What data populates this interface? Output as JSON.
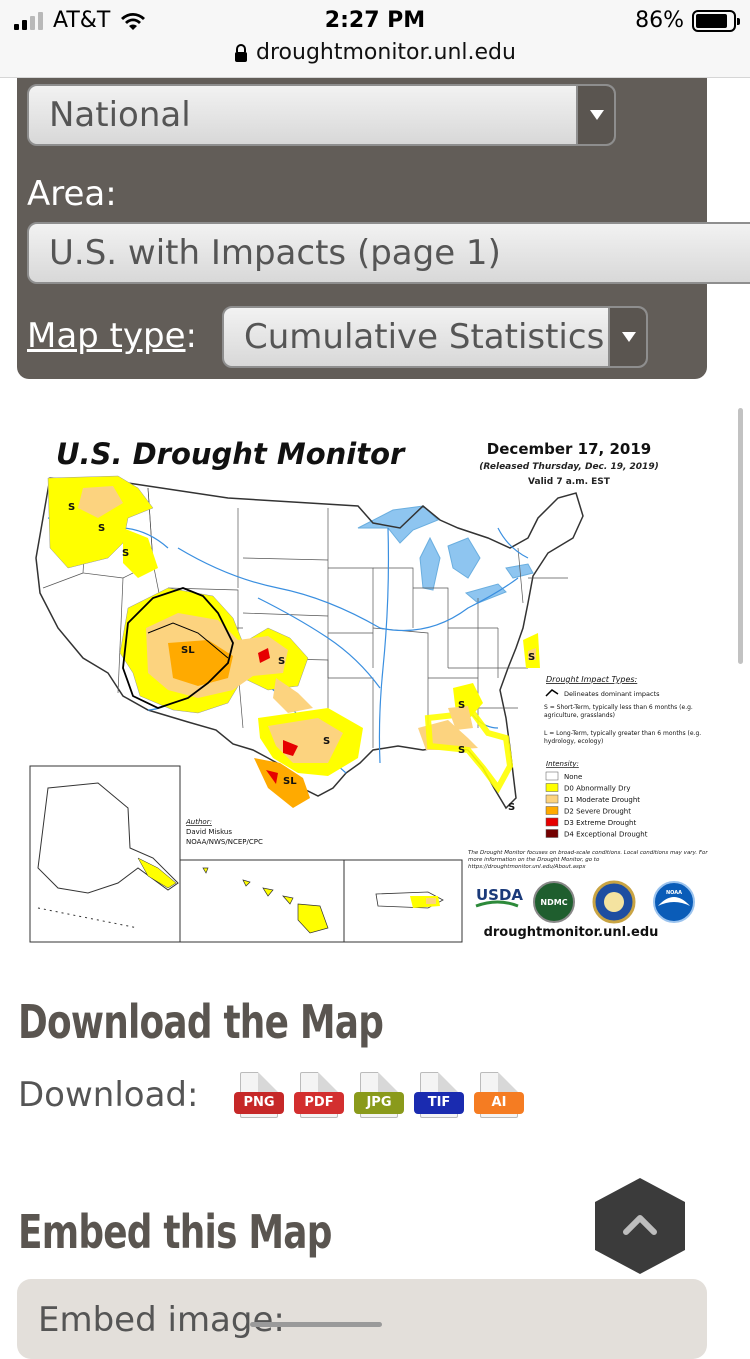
{
  "status": {
    "carrier": "AT&T",
    "time": "2:27 PM",
    "battery": "86%",
    "url": "droughtmonitor.unl.edu"
  },
  "controls": {
    "region_value": "National",
    "area_label": "Area:",
    "area_value": "U.S. with Impacts (page 1)",
    "maptype_label": "Map type",
    "maptype_colon": ":",
    "maptype_value": "Cumulative Statistics"
  },
  "map": {
    "title": "U.S. Drought Monitor",
    "date": "December 17, 2019",
    "released": "(Released Thursday, Dec. 19, 2019)",
    "valid": "Valid 7 a.m. EST",
    "impact_types_heading": "Drought Impact Types:",
    "impact_line": "Delineates dominant impacts",
    "impact_s": "S = Short-Term, typically less than 6 months (e.g. agriculture, grasslands)",
    "impact_l": "L = Long-Term, typically greater than 6 months (e.g. hydrology, ecology)",
    "intensity_heading": "Intensity:",
    "intensity": [
      {
        "label": "None",
        "color": "#ffffff"
      },
      {
        "label": "D0 Abnormally Dry",
        "color": "#ffff00"
      },
      {
        "label": "D1 Moderate Drought",
        "color": "#fcd37f"
      },
      {
        "label": "D2 Severe Drought",
        "color": "#ffaa00"
      },
      {
        "label": "D3 Extreme Drought",
        "color": "#e60000"
      },
      {
        "label": "D4 Exceptional Drought",
        "color": "#730000"
      }
    ],
    "note": "The Drought Monitor focuses on broad-scale conditions. Local conditions may vary. For more information on the Drought Monitor, go to https://droughtmonitor.unl.edu/About.aspx",
    "author_heading": "Author:",
    "author_name": "David Miskus",
    "author_org": "NOAA/NWS/NCEP/CPC",
    "footer_url": "droughtmonitor.unl.edu",
    "logo_usda": "USDA",
    "logo_ndmc": "NDMC",
    "logo_noaa": "NOAA"
  },
  "download": {
    "heading": "Download the Map",
    "label": "Download:",
    "formats": [
      {
        "label": "PNG",
        "color": "#c62828"
      },
      {
        "label": "PDF",
        "color": "#d32f2f"
      },
      {
        "label": "JPG",
        "color": "#8a9a1b"
      },
      {
        "label": "TIF",
        "color": "#1a2bb0"
      },
      {
        "label": "AI",
        "color": "#f57c22"
      }
    ]
  },
  "embed": {
    "heading": "Embed this Map",
    "label": "Embed image:"
  }
}
